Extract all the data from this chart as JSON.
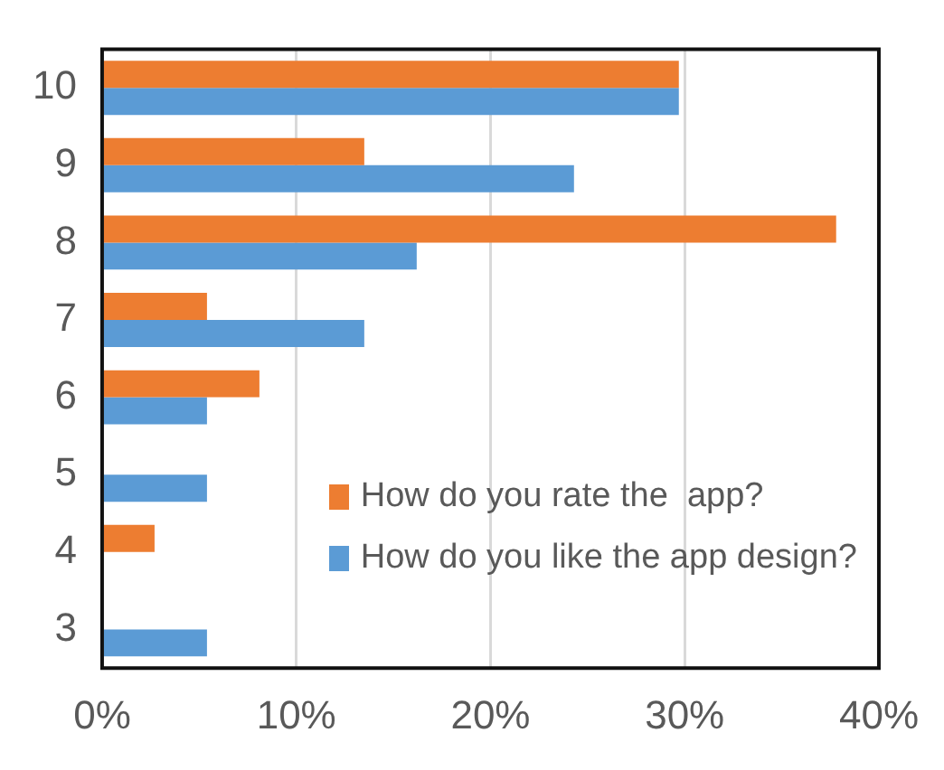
{
  "chart_data": {
    "type": "bar",
    "orientation": "horizontal",
    "categories": [
      "10",
      "9",
      "8",
      "7",
      "6",
      "5",
      "4",
      "3"
    ],
    "series": [
      {
        "name": "How do you rate the  app?",
        "color": "#ed7d31",
        "values": [
          29.7,
          13.5,
          37.8,
          5.4,
          8.1,
          0,
          2.7,
          0
        ]
      },
      {
        "name": "How do you like the app design?",
        "color": "#5b9bd5",
        "values": [
          29.7,
          24.3,
          16.2,
          13.5,
          5.4,
          5.4,
          0,
          5.4
        ]
      }
    ],
    "xlim": [
      0,
      40
    ],
    "xticks": [
      {
        "value": 0,
        "label": "0%"
      },
      {
        "value": 10,
        "label": "10%"
      },
      {
        "value": 20,
        "label": "20%"
      },
      {
        "value": 30,
        "label": "30%"
      },
      {
        "value": 40,
        "label": "40%"
      }
    ],
    "grid": "x",
    "legend": "bottom right"
  }
}
